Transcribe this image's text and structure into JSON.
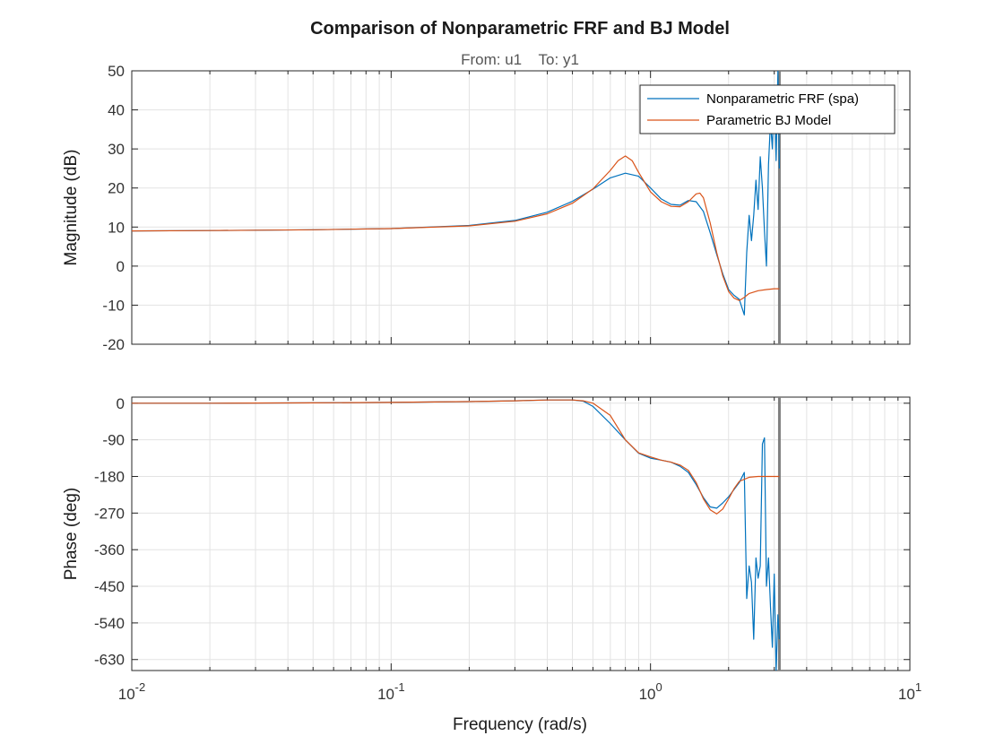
{
  "chart_data": {
    "type": "line",
    "title": "Comparison of Nonparametric FRF and BJ Model",
    "subtitle_from": "From: u1",
    "subtitle_to": "To: y1",
    "xlabel": "Frequency (rad/s)",
    "xscale": "log",
    "xlim": [
      0.01,
      10
    ],
    "x_ticks": [
      0.01,
      0.1,
      1,
      10
    ],
    "x_tick_labels": [
      {
        "base": "10",
        "exp": "-2"
      },
      {
        "base": "10",
        "exp": "-1"
      },
      {
        "base": "10",
        "exp": "0"
      },
      {
        "base": "10",
        "exp": "1"
      }
    ],
    "nyquist_frequency": 3.14,
    "legend_placement": "top-right",
    "grid": true,
    "colors": {
      "nonparametric": "#0072BD",
      "parametric": "#D95319",
      "nyquist_line": "#7f7f7f"
    },
    "series_names": [
      "Nonparametric FRF (spa)",
      "Parametric BJ Model"
    ],
    "panels": [
      {
        "ylabel": "Magnitude (dB)",
        "ylim": [
          -20,
          50
        ],
        "yticks": [
          50,
          40,
          30,
          20,
          10,
          0,
          -10,
          -20
        ],
        "series": [
          {
            "name": "Nonparametric FRF (spa)",
            "color": "#0072BD",
            "x": [
              0.01,
              0.02,
              0.05,
              0.1,
              0.2,
              0.3,
              0.4,
              0.5,
              0.6,
              0.7,
              0.8,
              0.9,
              1.0,
              1.1,
              1.2,
              1.3,
              1.4,
              1.5,
              1.6,
              1.7,
              1.8,
              1.9,
              2.0,
              2.1,
              2.2,
              2.3,
              2.35,
              2.4,
              2.45,
              2.5,
              2.55,
              2.6,
              2.65,
              2.7,
              2.75,
              2.8,
              2.85,
              2.9,
              2.95,
              3.0,
              3.05,
              3.1,
              3.14
            ],
            "y": [
              9.0,
              9.1,
              9.3,
              9.6,
              10.4,
              11.7,
              13.8,
              16.6,
              19.7,
              22.6,
              23.8,
              23.0,
              20.0,
              17.2,
              15.8,
              15.6,
              16.8,
              16.5,
              14.0,
              8.5,
              3.0,
              -2.0,
              -6.0,
              -7.5,
              -8.5,
              -12.5,
              3.5,
              13.0,
              6.5,
              13.0,
              22.0,
              14.5,
              28.0,
              20.0,
              9.0,
              0.0,
              26.0,
              37.0,
              30.0,
              46.0,
              27.0,
              50.0,
              25.0
            ]
          },
          {
            "name": "Parametric BJ Model",
            "color": "#D95319",
            "x": [
              0.01,
              0.02,
              0.05,
              0.1,
              0.2,
              0.3,
              0.4,
              0.5,
              0.6,
              0.7,
              0.75,
              0.8,
              0.85,
              0.9,
              1.0,
              1.1,
              1.2,
              1.3,
              1.4,
              1.5,
              1.55,
              1.6,
              1.7,
              1.8,
              1.9,
              2.0,
              2.1,
              2.2,
              2.3,
              2.4,
              2.6,
              2.8,
              3.0,
              3.14
            ],
            "y": [
              9.0,
              9.1,
              9.3,
              9.6,
              10.3,
              11.5,
              13.4,
              16.1,
              19.8,
              24.5,
              27.0,
              28.2,
              27.0,
              24.0,
              19.0,
              16.5,
              15.3,
              15.2,
              16.5,
              18.5,
              18.7,
              17.5,
              11.0,
              3.5,
              -2.5,
              -6.5,
              -8.2,
              -8.8,
              -8.0,
              -7.0,
              -6.3,
              -6.0,
              -5.8,
              -5.8
            ]
          }
        ]
      },
      {
        "ylabel": "Phase (deg)",
        "ylim": [
          -657,
          15
        ],
        "yticks": [
          0,
          -90,
          -180,
          -270,
          -360,
          -450,
          -540,
          -630
        ],
        "series": [
          {
            "name": "Nonparametric FRF (spa)",
            "color": "#0072BD",
            "x": [
              0.01,
              0.02,
              0.05,
              0.1,
              0.2,
              0.3,
              0.4,
              0.5,
              0.55,
              0.6,
              0.7,
              0.8,
              0.9,
              1.0,
              1.1,
              1.2,
              1.3,
              1.4,
              1.5,
              1.6,
              1.7,
              1.8,
              1.9,
              2.0,
              2.1,
              2.2,
              2.3,
              2.35,
              2.4,
              2.45,
              2.5,
              2.55,
              2.6,
              2.65,
              2.7,
              2.75,
              2.8,
              2.85,
              2.9,
              2.95,
              3.0,
              3.05,
              3.1,
              3.14
            ],
            "y": [
              0,
              0,
              1,
              2,
              4,
              6,
              8,
              8,
              5,
              -8,
              -50,
              -90,
              -123,
              -135,
              -140,
              -145,
              -155,
              -170,
              -200,
              -232,
              -255,
              -258,
              -245,
              -230,
              -212,
              -195,
              -170,
              -480,
              -400,
              -440,
              -580,
              -380,
              -430,
              -400,
              -100,
              -85,
              -450,
              -380,
              -500,
              -600,
              -420,
              -660,
              -520,
              -580
            ]
          },
          {
            "name": "Parametric BJ Model",
            "color": "#D95319",
            "x": [
              0.01,
              0.02,
              0.05,
              0.1,
              0.2,
              0.3,
              0.4,
              0.5,
              0.55,
              0.6,
              0.7,
              0.8,
              0.9,
              1.0,
              1.1,
              1.2,
              1.3,
              1.4,
              1.5,
              1.6,
              1.7,
              1.8,
              1.9,
              2.0,
              2.1,
              2.2,
              2.4,
              2.6,
              2.8,
              3.0,
              3.14
            ],
            "y": [
              0,
              0,
              1,
              2,
              4,
              6,
              8,
              8,
              6,
              0,
              -30,
              -90,
              -122,
              -132,
              -140,
              -145,
              -152,
              -165,
              -195,
              -235,
              -262,
              -272,
              -260,
              -235,
              -210,
              -192,
              -182,
              -180,
              -180,
              -180,
              -180
            ]
          }
        ]
      }
    ]
  }
}
